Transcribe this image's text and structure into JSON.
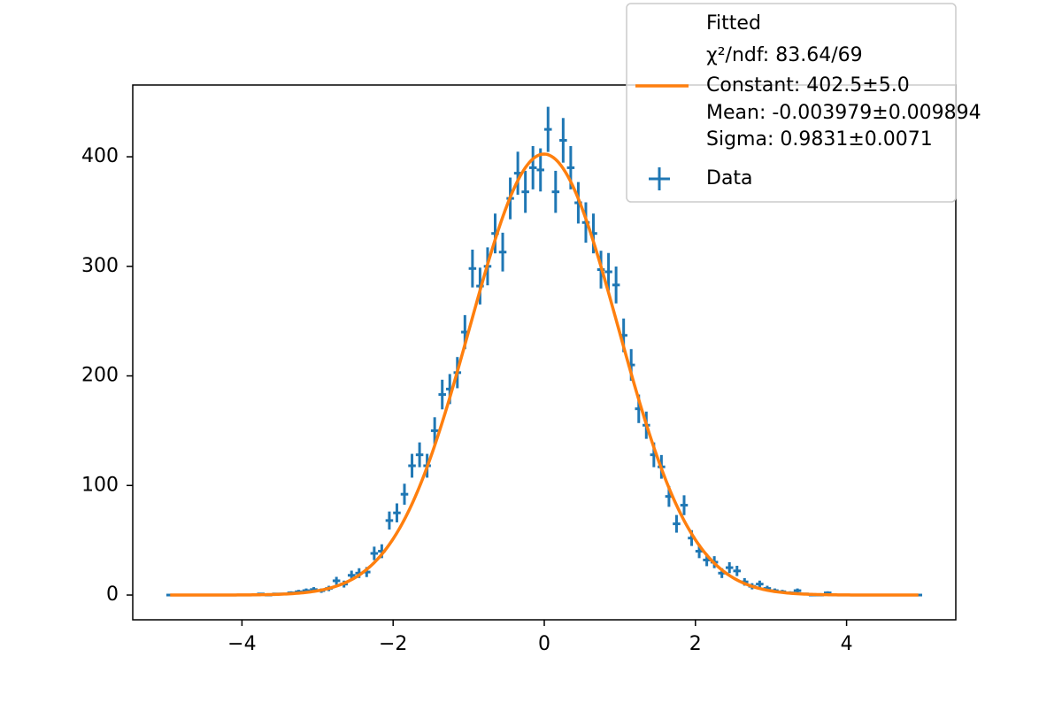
{
  "chart_data": {
    "type": "errorbar",
    "xlim": [
      -5.445,
      5.445
    ],
    "ylim": [
      -22.6,
      465.5
    ],
    "xticks": [
      {
        "value": -4,
        "label": "−4"
      },
      {
        "value": -2,
        "label": "−2"
      },
      0,
      2,
      4
    ],
    "yticks": [
      0,
      100,
      200,
      300,
      400
    ],
    "series": [
      {
        "name": "Data",
        "color": "#1f77b4",
        "x": [
          -4.95,
          -4.85,
          -4.75,
          -4.65,
          -4.55,
          -4.45,
          -4.35,
          -4.25,
          -4.15,
          -4.05,
          -3.95,
          -3.85,
          -3.75,
          -3.65,
          -3.55,
          -3.45,
          -3.35,
          -3.25,
          -3.15,
          -3.05,
          -2.95,
          -2.85,
          -2.75,
          -2.65,
          -2.55,
          -2.45,
          -2.35,
          -2.25,
          -2.15,
          -2.05,
          -1.95,
          -1.85,
          -1.75,
          -1.65,
          -1.55,
          -1.45,
          -1.35,
          -1.25,
          -1.15,
          -1.05,
          -0.95,
          -0.85,
          -0.75,
          -0.65,
          -0.55,
          -0.45,
          -0.35,
          -0.25,
          -0.15,
          -0.05,
          0.05,
          0.15,
          0.25,
          0.35,
          0.45,
          0.55,
          0.65,
          0.75,
          0.85,
          0.95,
          1.05,
          1.15,
          1.25,
          1.35,
          1.45,
          1.55,
          1.65,
          1.75,
          1.85,
          1.95,
          2.05,
          2.15,
          2.25,
          2.35,
          2.45,
          2.55,
          2.65,
          2.75,
          2.85,
          2.95,
          3.05,
          3.15,
          3.25,
          3.35,
          3.45,
          3.55,
          3.65,
          3.75,
          3.85,
          3.95,
          4.05,
          4.15,
          4.25,
          4.35,
          4.45,
          4.55,
          4.65,
          4.75,
          4.85,
          4.95
        ],
        "values": [
          0,
          0,
          0,
          0,
          0,
          0,
          0,
          0,
          0,
          0,
          0,
          0,
          1,
          0,
          1,
          1,
          2,
          3,
          4,
          5,
          4,
          6,
          13,
          10,
          18,
          20,
          21,
          38,
          40,
          68,
          75,
          92,
          118,
          128,
          118,
          150,
          183,
          188,
          203,
          240,
          298,
          282,
          300,
          330,
          313,
          362,
          385,
          368,
          390,
          388,
          425,
          368,
          415,
          390,
          358,
          340,
          330,
          297,
          295,
          283,
          237,
          210,
          170,
          155,
          128,
          117,
          90,
          65,
          82,
          52,
          40,
          32,
          30,
          20,
          25,
          22,
          12,
          8,
          10,
          6,
          4,
          3,
          2,
          4,
          1,
          0,
          0,
          2,
          0,
          0,
          0,
          0,
          0,
          0,
          0,
          0,
          0,
          0,
          0,
          0
        ]
      }
    ],
    "fit": {
      "name_lines": [
        "Fitted",
        "χ²/ndf: 83.64/69",
        "Constant: 402.5±5.0",
        "Mean: -0.003979±0.009894",
        "Sigma: 0.9831±0.0071"
      ],
      "color": "#ff7f0e",
      "constant": 402.5,
      "mean": -0.003979,
      "sigma": 0.9831
    },
    "legend": "upper right"
  }
}
